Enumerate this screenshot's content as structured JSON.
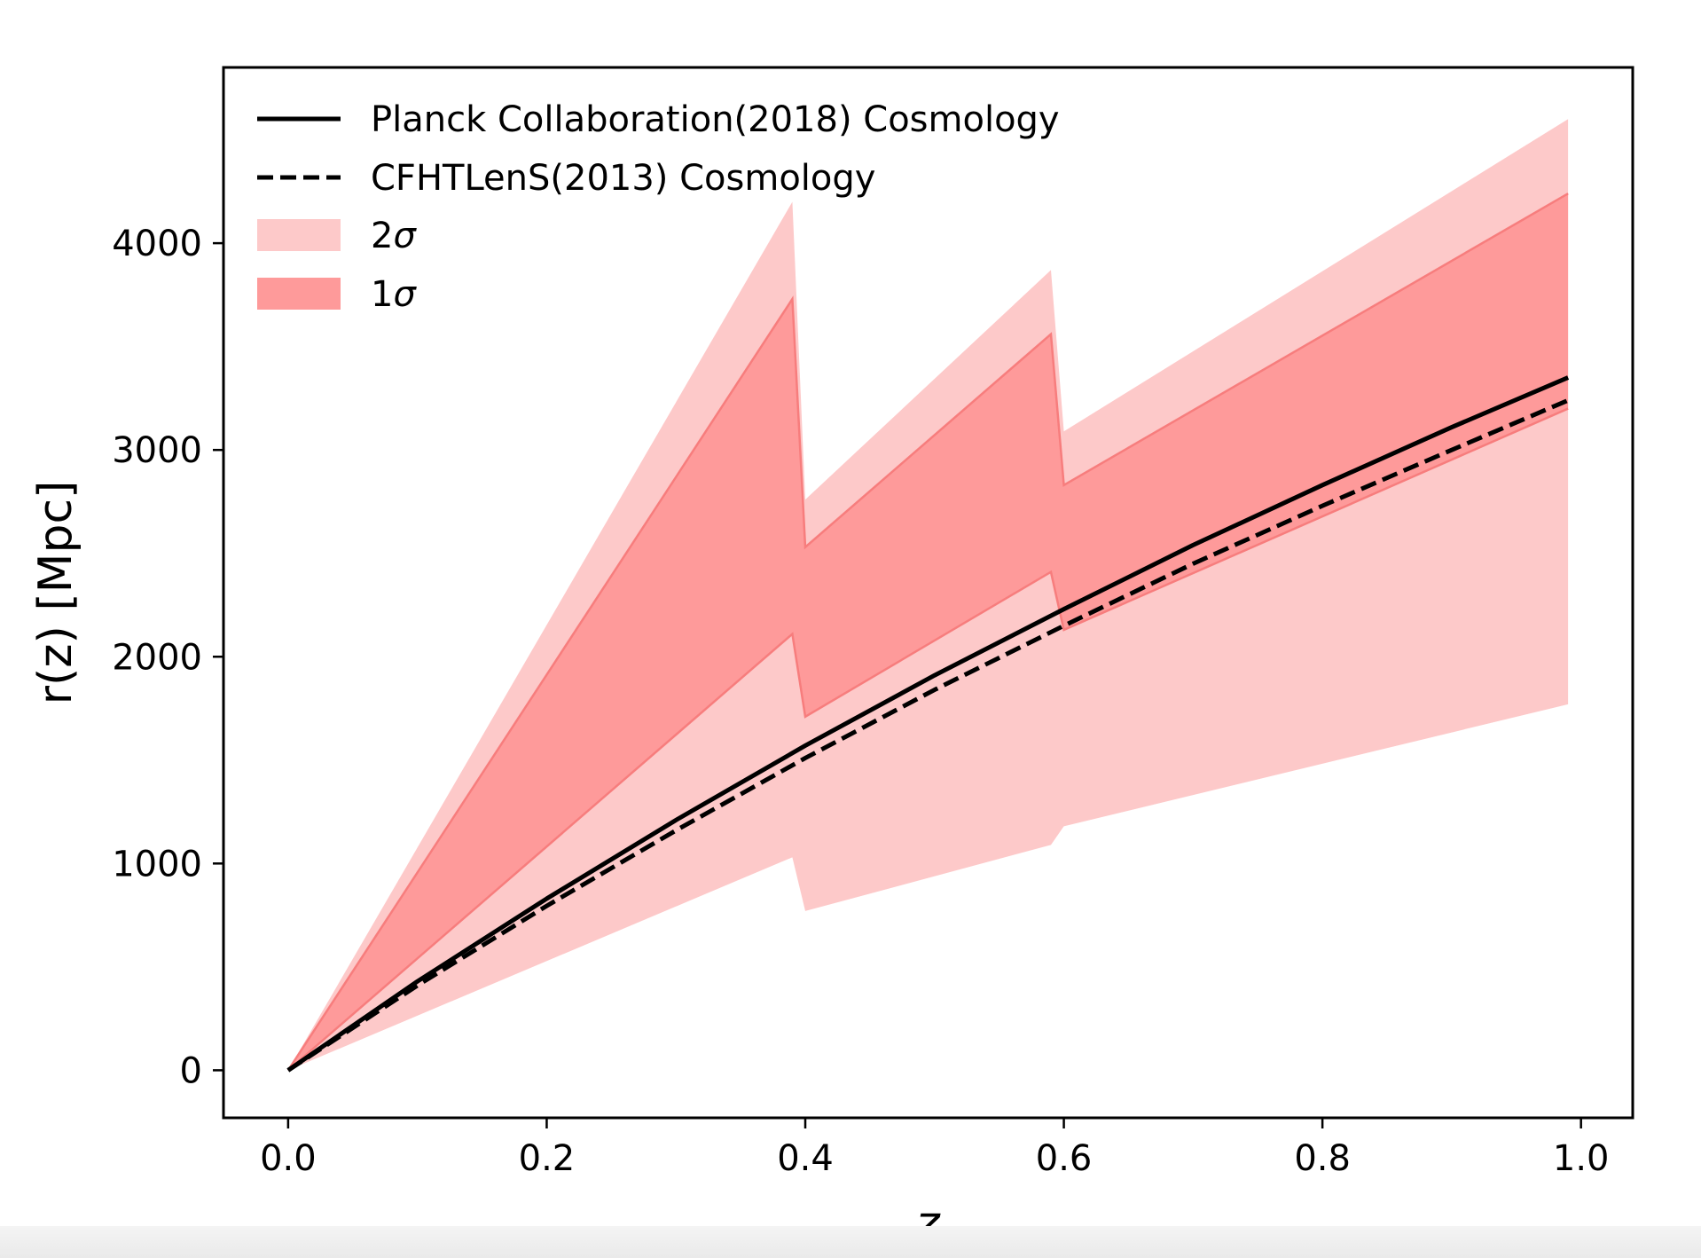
{
  "chart_data": {
    "type": "area",
    "xlabel": "z",
    "ylabel": "r(z) [Mpc]",
    "xlim": [
      -0.05,
      1.04
    ],
    "ylim": [
      -230,
      4850
    ],
    "x_ticks": [
      0.0,
      0.2,
      0.4,
      0.6,
      0.8,
      1.0
    ],
    "x_tick_labels": [
      "0.0",
      "0.2",
      "0.4",
      "0.6",
      "0.8",
      "1.0"
    ],
    "y_ticks": [
      0,
      1000,
      2000,
      3000,
      4000
    ],
    "y_tick_labels": [
      "0",
      "1000",
      "2000",
      "3000",
      "4000"
    ],
    "legend_position": "top-left",
    "series": [
      {
        "name": "Planck Collaboration(2018) Cosmology",
        "style": "solid",
        "color": "#000000",
        "x": [
          0.0,
          0.1,
          0.2,
          0.3,
          0.4,
          0.5,
          0.6,
          0.7,
          0.8,
          0.9,
          0.99
        ],
        "y": [
          0,
          430,
          830,
          1210,
          1570,
          1910,
          2230,
          2540,
          2830,
          3110,
          3350
        ]
      },
      {
        "name": "CFHTLenS(2013) Cosmology",
        "style": "dashed",
        "color": "#000000",
        "x": [
          0.0,
          0.1,
          0.2,
          0.3,
          0.4,
          0.5,
          0.6,
          0.7,
          0.8,
          0.9,
          0.99
        ],
        "y": [
          0,
          410,
          795,
          1160,
          1510,
          1840,
          2150,
          2450,
          2730,
          3000,
          3240
        ]
      }
    ],
    "bands": [
      {
        "name": "2σ",
        "label_num": "2",
        "label_sym": "σ",
        "color": "#fdc9c9",
        "x": [
          0.0,
          0.39,
          0.39,
          0.4,
          0.4,
          0.59,
          0.59,
          0.6,
          0.6,
          0.99
        ],
        "upper": [
          0,
          4200,
          4200,
          2760,
          2760,
          3870,
          3870,
          3090,
          3090,
          4600
        ],
        "lower": [
          0,
          1030,
          1030,
          770,
          770,
          1090,
          1090,
          1180,
          1180,
          1770
        ]
      },
      {
        "name": "1σ",
        "label_num": "1",
        "label_sym": "σ",
        "color": "#fe9a9a",
        "x": [
          0.0,
          0.39,
          0.39,
          0.4,
          0.4,
          0.59,
          0.59,
          0.6,
          0.6,
          0.99
        ],
        "upper": [
          0,
          3730,
          3730,
          2530,
          2530,
          3560,
          3560,
          2830,
          2830,
          4240
        ],
        "lower": [
          0,
          2110,
          2110,
          1710,
          1710,
          2410,
          2410,
          2130,
          2130,
          3200
        ]
      }
    ]
  }
}
